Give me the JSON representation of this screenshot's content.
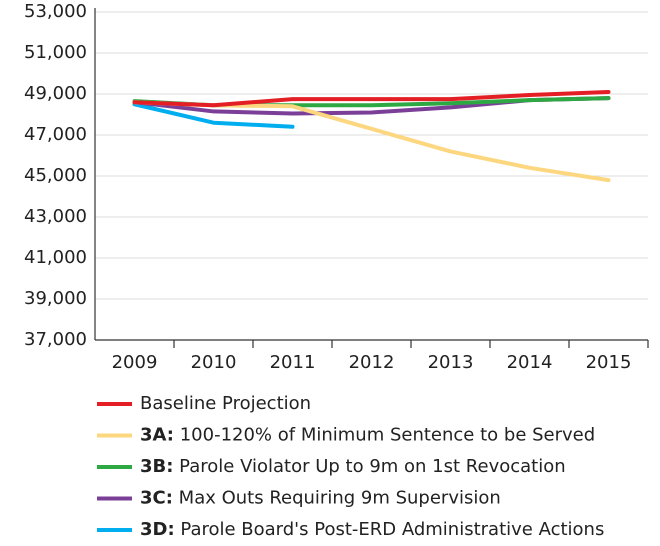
{
  "chart_data": {
    "type": "line",
    "categories": [
      "2009",
      "2010",
      "2011",
      "2012",
      "2013",
      "2014",
      "2015"
    ],
    "series": [
      {
        "name": "Baseline Projection",
        "color": "#e31e24",
        "values": [
          48600,
          48450,
          48750,
          48750,
          48750,
          48950,
          49100
        ]
      },
      {
        "name": "3A: 100-120% of Minimum Sentence to be Served",
        "color": "#fcd77f",
        "values": [
          48600,
          48450,
          48400,
          47300,
          46200,
          45400,
          44800
        ]
      },
      {
        "name": "3B: Parole Violator Up to 9m on 1st Revocation",
        "color": "#2ea843",
        "values": [
          48650,
          48450,
          48450,
          48450,
          48550,
          48700,
          48800
        ]
      },
      {
        "name": "3C: Max Outs Requiring 9m Supervision",
        "color": "#7b3f98",
        "values": [
          48600,
          48150,
          48050,
          48100,
          48350,
          48700,
          48800
        ]
      },
      {
        "name": "3D: Parole Board's Post-ERD Administrative Actions",
        "color": "#00aeef",
        "values": [
          48500,
          47600,
          47400,
          null,
          null,
          null,
          null
        ]
      }
    ],
    "ylim": [
      37000,
      53000
    ],
    "yticks": [
      {
        "value": 37000,
        "label": "37,000"
      },
      {
        "value": 39000,
        "label": "39,000"
      },
      {
        "value": 41000,
        "label": "41,000"
      },
      {
        "value": 43000,
        "label": "43,000"
      },
      {
        "value": 45000,
        "label": "45,000"
      },
      {
        "value": 47000,
        "label": "47,000"
      },
      {
        "value": 49000,
        "label": "49,000"
      },
      {
        "value": 51000,
        "label": "51,000"
      },
      {
        "value": 53000,
        "label": "53,000"
      }
    ],
    "grid": true
  }
}
